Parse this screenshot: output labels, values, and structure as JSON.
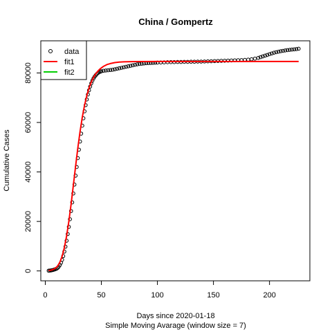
{
  "chart_data": {
    "type": "scatter",
    "title": "China / Gompertz",
    "xlabel": "Days since 2020-01-18",
    "subtitle": "Simple Moving Avarage (window size = 7)",
    "ylabel": "Cumulative Cases",
    "xlim": [
      -4,
      236
    ],
    "ylim": [
      -4000,
      93000
    ],
    "x_ticks": [
      0,
      50,
      100,
      150,
      200
    ],
    "y_ticks": [
      0,
      20000,
      40000,
      60000,
      80000
    ],
    "legend": {
      "position": "top-left",
      "entries": [
        {
          "label": "data",
          "symbol": "open-circle",
          "color": "#000000"
        },
        {
          "label": "fit1",
          "symbol": "line",
          "color": "#ff0000"
        },
        {
          "label": "fit2",
          "symbol": "line",
          "color": "#00cd00"
        }
      ]
    },
    "series": [
      {
        "name": "data",
        "kind": "points",
        "color": "#000000",
        "x": [
          3,
          4,
          5,
          6,
          7,
          8,
          9,
          10,
          11,
          12,
          13,
          14,
          15,
          16,
          17,
          18,
          19,
          20,
          21,
          22,
          23,
          24,
          25,
          26,
          27,
          28,
          29,
          30,
          31,
          32,
          33,
          34,
          35,
          36,
          37,
          38,
          39,
          40,
          41,
          42,
          43,
          44,
          45,
          46,
          47,
          48,
          49,
          50,
          52,
          54,
          56,
          58,
          60,
          62,
          64,
          66,
          68,
          70,
          72,
          74,
          76,
          78,
          80,
          82,
          84,
          86,
          88,
          90,
          92,
          94,
          96,
          98,
          100,
          103,
          106,
          109,
          112,
          115,
          118,
          121,
          124,
          127,
          130,
          133,
          136,
          139,
          142,
          145,
          148,
          151,
          154,
          157,
          160,
          163,
          166,
          169,
          172,
          175,
          178,
          181,
          184,
          187,
          190,
          192,
          194,
          196,
          198,
          200,
          202,
          204,
          206,
          208,
          210,
          212,
          214,
          216,
          218,
          220,
          222,
          224,
          226
        ],
        "y": [
          100,
          150,
          200,
          300,
          400,
          550,
          700,
          900,
          1200,
          1700,
          2400,
          3300,
          4500,
          6000,
          7800,
          9800,
          12200,
          14900,
          17800,
          20900,
          24200,
          27700,
          31300,
          34900,
          38500,
          42000,
          45600,
          49000,
          52300,
          55500,
          58700,
          61700,
          64500,
          67000,
          69300,
          71300,
          73000,
          74500,
          75800,
          76900,
          77800,
          78500,
          79100,
          79600,
          80000,
          80300,
          80500,
          80700,
          80900,
          81000,
          81100,
          81200,
          81300,
          81500,
          81700,
          81900,
          82100,
          82300,
          82500,
          82700,
          82900,
          83100,
          83300,
          83500,
          83650,
          83750,
          83850,
          83950,
          84000,
          84050,
          84100,
          84150,
          84200,
          84250,
          84300,
          84350,
          84400,
          84400,
          84450,
          84450,
          84500,
          84500,
          84550,
          84550,
          84600,
          84600,
          84650,
          84700,
          84750,
          84800,
          84850,
          84900,
          84950,
          85000,
          85050,
          85100,
          85150,
          85200,
          85300,
          85400,
          85550,
          85800,
          86100,
          86400,
          86700,
          87000,
          87300,
          87600,
          87900,
          88200,
          88400,
          88600,
          88800,
          88950,
          89100,
          89250,
          89350,
          89450,
          89550,
          89650,
          89800
        ]
      },
      {
        "name": "fit1",
        "kind": "line",
        "color": "#ff0000",
        "x": [
          3,
          5,
          7,
          9,
          11,
          13,
          15,
          17,
          19,
          21,
          23,
          25,
          27,
          29,
          31,
          33,
          35,
          37,
          39,
          41,
          43,
          45,
          47,
          49,
          52,
          55,
          58,
          62,
          66,
          70,
          80,
          100,
          120,
          150,
          200,
          226
        ],
        "y": [
          150,
          300,
          600,
          1100,
          2000,
          3500,
          5900,
          9400,
          14100,
          20000,
          26900,
          34500,
          42200,
          49600,
          56300,
          62100,
          66900,
          70800,
          73900,
          76300,
          78200,
          79700,
          80800,
          81700,
          82700,
          83400,
          83800,
          84200,
          84400,
          84500,
          84600,
          84650,
          84650,
          84650,
          84650,
          84650
        ]
      }
    ]
  }
}
